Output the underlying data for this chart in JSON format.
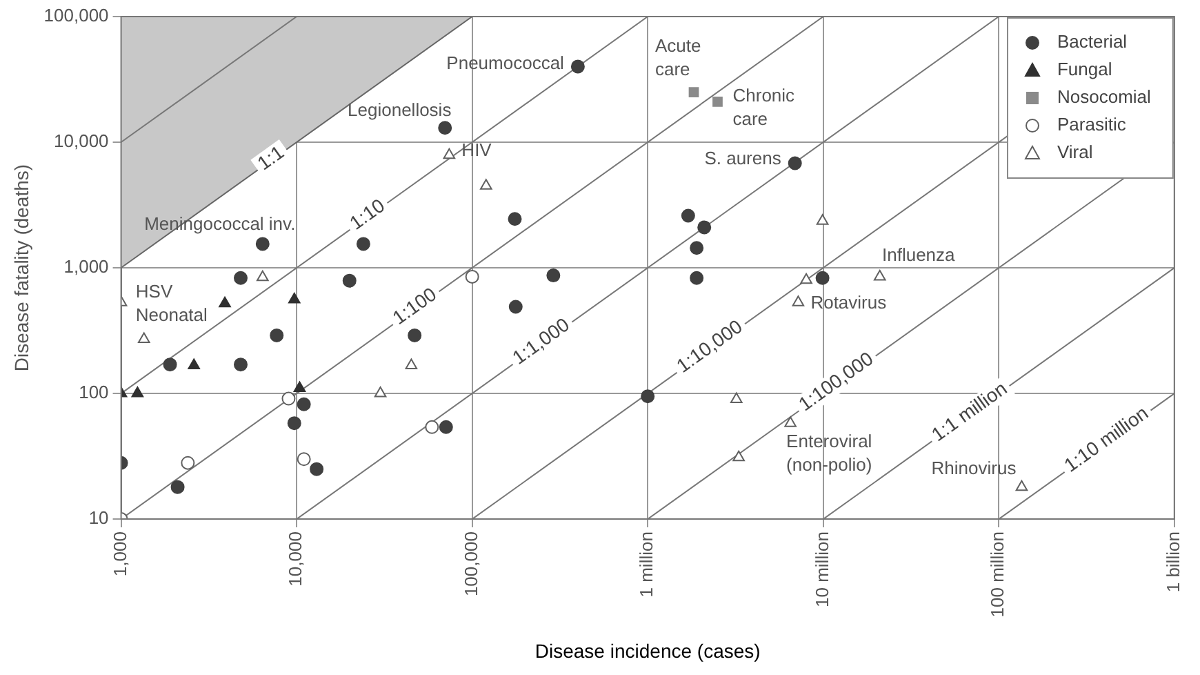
{
  "chart_data": {
    "type": "scatter",
    "xlabel": "Disease incidence (cases)",
    "ylabel": "Disease fatality (deaths)",
    "log": "xy",
    "grid": true,
    "legend": "top right",
    "xlim": [
      1000,
      1000000000
    ],
    "ylim": [
      10,
      100000
    ],
    "xticks": [
      {
        "value": 1000,
        "label": "1,000"
      },
      {
        "value": 10000,
        "label": "10,000"
      },
      {
        "value": 100000,
        "label": "100,000"
      },
      {
        "value": 1000000,
        "label": "1 million"
      },
      {
        "value": 10000000,
        "label": "10 million"
      },
      {
        "value": 100000000,
        "label": "100 million"
      },
      {
        "value": 1000000000,
        "label": "1 billion"
      }
    ],
    "yticks": [
      {
        "value": 10,
        "label": "10"
      },
      {
        "value": 100,
        "label": "100"
      },
      {
        "value": 1000,
        "label": "1,000"
      },
      {
        "value": 10000,
        "label": "10,000"
      },
      {
        "value": 100000,
        "label": "100,000"
      }
    ],
    "series": [
      {
        "type": "area",
        "name": "1:1",
        "color": "#c8c8c8",
        "x": [
          1000,
          100000
        ],
        "values": [
          1000,
          100000
        ]
      },
      {
        "type": "line",
        "color": "#777777",
        "x": [
          1000,
          10000
        ],
        "values": [
          10000,
          100000
        ]
      },
      {
        "type": "line",
        "name": "1:10",
        "color": "#777777",
        "x": [
          1000,
          1000000
        ],
        "values": [
          100,
          100000
        ]
      },
      {
        "type": "line",
        "name": "1:100",
        "color": "#777777",
        "x": [
          1000,
          10000000
        ],
        "values": [
          10,
          100000
        ]
      },
      {
        "type": "line",
        "name": "1:1,000",
        "color": "#777777",
        "x": [
          10000,
          100000000
        ],
        "values": [
          10,
          100000
        ]
      },
      {
        "type": "line",
        "name": "1:10,000",
        "color": "#777777",
        "x": [
          100000,
          1000000000
        ],
        "values": [
          10,
          100000
        ]
      },
      {
        "type": "line",
        "name": "1:100,000",
        "color": "#777777",
        "x": [
          1000000,
          1000000000
        ],
        "values": [
          10,
          10000
        ]
      },
      {
        "type": "line",
        "name": "1:1 million",
        "color": "#777777",
        "x": [
          10000000,
          1000000000
        ],
        "values": [
          10,
          1000
        ]
      },
      {
        "type": "line",
        "name": "1:10 million",
        "color": "#777777",
        "x": [
          100000000,
          1000000000
        ],
        "values": [
          10,
          100
        ]
      },
      {
        "type": "scatter",
        "name": "Bacterial",
        "marker": "circle",
        "color": "#404040",
        "x": [
          70000,
          400000,
          6400,
          24000,
          4800,
          20000,
          7700,
          47000,
          1900,
          4800,
          11000,
          9700,
          1000,
          2100,
          13000,
          71000,
          175000,
          290000,
          177000,
          1700000,
          2100000,
          1900000,
          1900000,
          6900000,
          9900000,
          1000000
        ],
        "values": [
          13000,
          40000,
          1550,
          1550,
          830,
          790,
          290,
          290,
          170,
          170,
          82,
          58,
          28,
          18,
          25,
          54,
          2450,
          870,
          490,
          2600,
          2100,
          1440,
          830,
          6800,
          830,
          95
        ]
      },
      {
        "type": "scatter",
        "name": "Fungal",
        "marker": "triangle",
        "color": "#303030",
        "x": [
          3900,
          9700,
          2600,
          1000,
          1240,
          10400
        ],
        "values": [
          520,
          560,
          167,
          100,
          100,
          110
        ]
      },
      {
        "type": "scatter",
        "name": "Nosocomial",
        "marker": "square",
        "color": "#8a8a8a",
        "x": [
          1830000,
          2500000
        ],
        "values": [
          25000,
          21000
        ]
      },
      {
        "type": "scatter",
        "name": "Parasitic",
        "marker": "circle",
        "color": "#ffffff",
        "x": [
          1000,
          2400,
          9000,
          11000,
          59000,
          100000
        ],
        "values": [
          10,
          28,
          91,
          30,
          54,
          850
        ]
      },
      {
        "type": "scatter",
        "name": "Viral",
        "marker": "triangle",
        "color": "#ffffff",
        "x": [
          1000,
          1350,
          6400,
          45000,
          30000,
          74000,
          120000,
          9900000,
          8000000,
          7200000,
          21000000,
          3200000,
          6500000,
          3300000,
          135000000
        ],
        "values": [
          530,
          270,
          840,
          167,
          100,
          7900,
          4500,
          2360,
          800,
          530,
          850,
          90,
          58,
          31,
          18
        ]
      }
    ],
    "annotations": [
      {
        "text": "Pneumococcal",
        "x": 400000,
        "y": 40000
      },
      {
        "text": "Legionellosis",
        "x": 70000,
        "y": 13000
      },
      {
        "text": "Acute care",
        "x": 1830000,
        "y": 25000
      },
      {
        "text": "Chronic care",
        "x": 2500000,
        "y": 21000
      },
      {
        "text": "S. aurens",
        "x": 6900000,
        "y": 6800
      },
      {
        "text": "HIV",
        "x": 74000,
        "y": 7900
      },
      {
        "text": "Meningococcal inv.",
        "x": 6400,
        "y": 1550
      },
      {
        "text": "HSV Neonatal",
        "x": 1350,
        "y": 270
      },
      {
        "text": "Influenza",
        "x": 21000000,
        "y": 850
      },
      {
        "text": "Rotavirus",
        "x": 7200000,
        "y": 530
      },
      {
        "text": "Enteroviral (non-polio)",
        "x": 6500000,
        "y": 58
      },
      {
        "text": "Rhinovirus",
        "x": 135000000,
        "y": 18
      }
    ]
  }
}
